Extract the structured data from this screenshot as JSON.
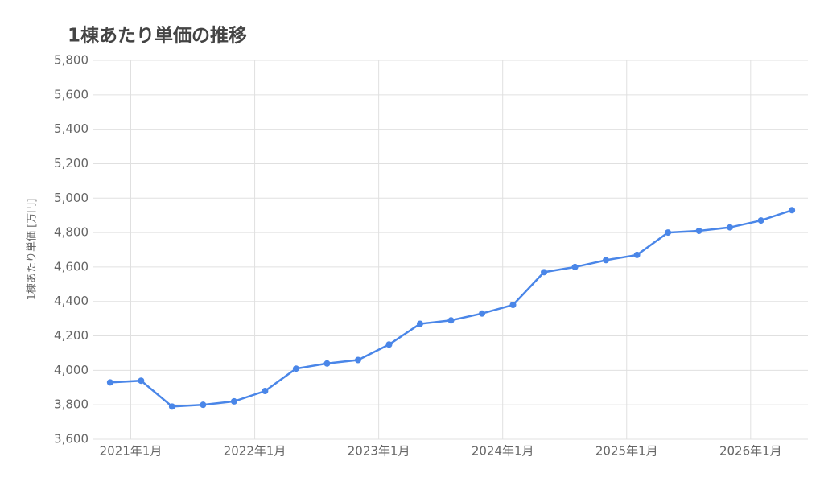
{
  "chart_data": {
    "type": "line",
    "title": "1棟あたり単価の推移",
    "y_label": "1棟あたり単価 [万円]",
    "x": [
      "2020-11",
      "2021-02",
      "2021-05",
      "2021-08",
      "2021-11",
      "2022-02",
      "2022-05",
      "2022-08",
      "2022-11",
      "2023-02",
      "2023-05",
      "2023-08",
      "2023-11",
      "2024-02",
      "2024-05",
      "2024-08",
      "2024-11",
      "2025-02",
      "2025-05",
      "2025-08",
      "2025-11",
      "2026-02",
      "2026-05"
    ],
    "series": [
      {
        "color": "#4a86e8",
        "values": [
          3930,
          3940,
          3790,
          3800,
          3820,
          3880,
          4010,
          4040,
          4060,
          4150,
          4270,
          4290,
          4330,
          4380,
          4570,
          4600,
          4640,
          4670,
          4800,
          4810,
          4830,
          4870,
          4930
        ]
      }
    ],
    "xlim": [
      "2020-10",
      "2026-06"
    ],
    "xticks": [
      {
        "value": "2021-01",
        "label": "2021年1月"
      },
      {
        "value": "2022-01",
        "label": "2022年1月"
      },
      {
        "value": "2023-01",
        "label": "2023年1月"
      },
      {
        "value": "2024-01",
        "label": "2024年1月"
      },
      {
        "value": "2025-01",
        "label": "2025年1月"
      },
      {
        "value": "2026-01",
        "label": "2026年1月"
      }
    ],
    "ylim": [
      3600,
      5800
    ],
    "yticks": [
      {
        "value": 3600,
        "label": "3,600"
      },
      {
        "value": 3800,
        "label": "3,800"
      },
      {
        "value": 4000,
        "label": "4,000"
      },
      {
        "value": 4200,
        "label": "4,200"
      },
      {
        "value": 4400,
        "label": "4,400"
      },
      {
        "value": 4600,
        "label": "4,600"
      },
      {
        "value": 4800,
        "label": "4,800"
      },
      {
        "value": 5000,
        "label": "5,000"
      },
      {
        "value": 5200,
        "label": "5,200"
      },
      {
        "value": 5400,
        "label": "5,400"
      },
      {
        "value": 5600,
        "label": "5,600"
      },
      {
        "value": 5800,
        "label": "5,800"
      }
    ],
    "grid": true
  }
}
